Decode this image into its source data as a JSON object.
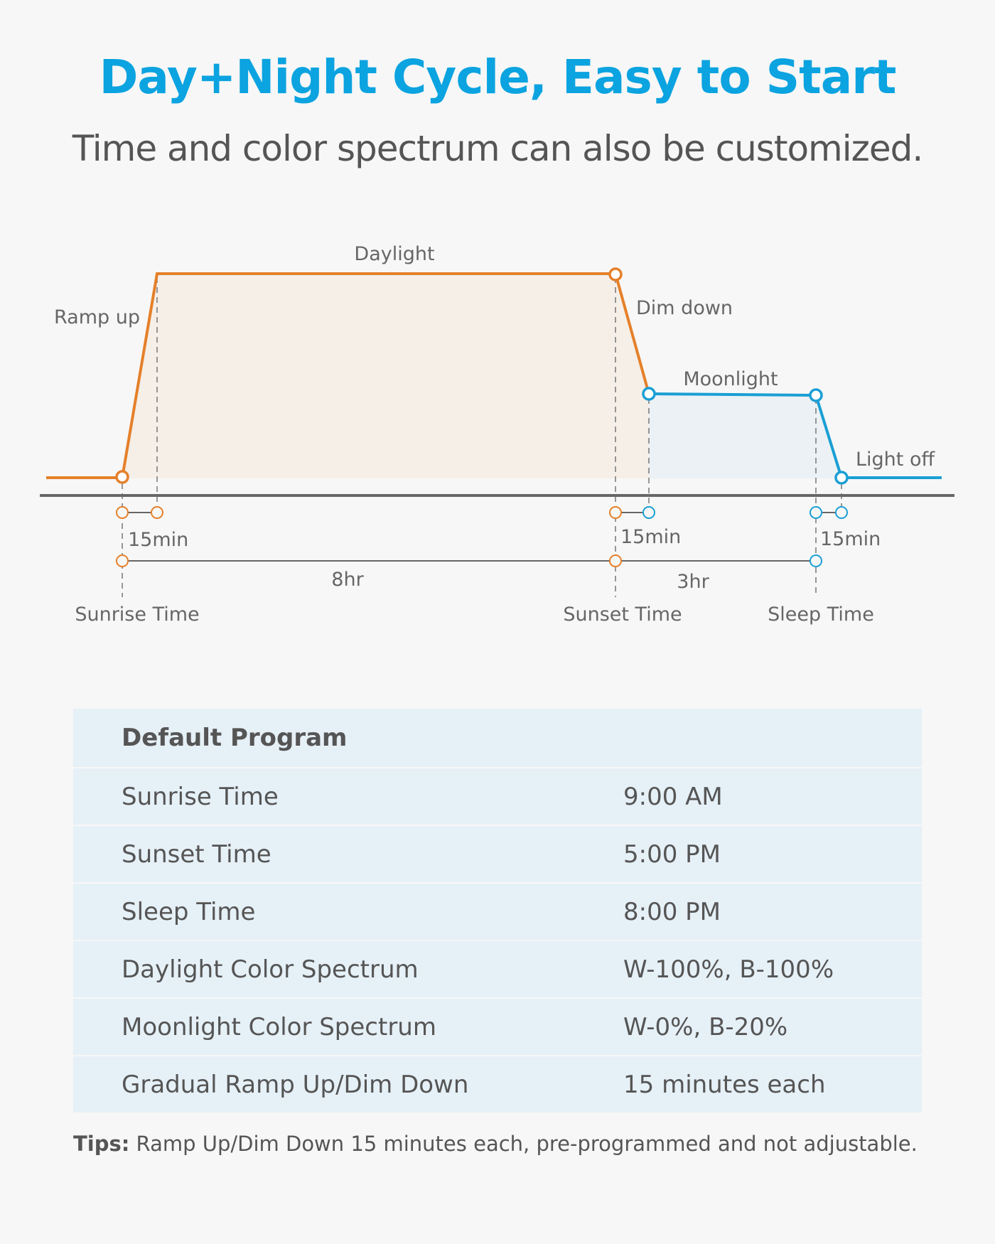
{
  "title": "Day+Night Cycle, Easy to Start",
  "subtitle": "Time and color spectrum can also be customized.",
  "colors": {
    "title": "#0ba3e0",
    "daylight": "#e5802a",
    "moonlight": "#1a9fd4",
    "table_bg": "#e6f0f7"
  },
  "diagram": {
    "labels": {
      "daylight": "Daylight",
      "ramp_up": "Ramp up",
      "dim_down": "Dim down",
      "moonlight": "Moonlight",
      "light_off": "Light off",
      "ramp_duration": "15min",
      "dim_duration": "15min",
      "off_duration": "15min",
      "day_duration": "8hr",
      "moon_duration": "3hr",
      "sunrise": "Sunrise Time",
      "sunset": "Sunset Time",
      "sleep": "Sleep Time"
    }
  },
  "table": {
    "header": "Default Program",
    "rows": [
      {
        "label": "Sunrise Time",
        "value": "9:00 AM"
      },
      {
        "label": "Sunset Time",
        "value": "5:00 PM"
      },
      {
        "label": "Sleep Time",
        "value": "8:00 PM"
      },
      {
        "label": "Daylight Color Spectrum",
        "value": "W-100%, B-100%"
      },
      {
        "label": "Moonlight Color Spectrum",
        "value": "W-0%, B-20%"
      },
      {
        "label": "Gradual Ramp Up/Dim Down",
        "value": "15 minutes each"
      }
    ]
  },
  "tips": {
    "label": "Tips:",
    "text": " Ramp Up/Dim Down 15 minutes each, pre-programmed and not adjustable."
  }
}
